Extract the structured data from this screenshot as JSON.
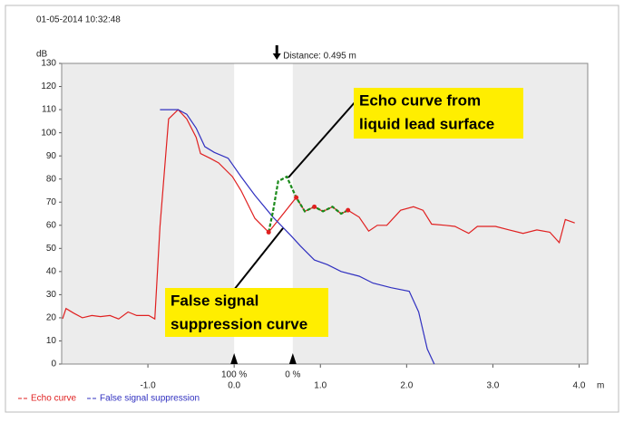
{
  "chart_data": {
    "type": "line",
    "timestamp": "01-05-2014 10:32:48",
    "y_label": "dB",
    "x_unit": "m",
    "xlim": [
      -2,
      4.1
    ],
    "ylim": [
      0,
      130
    ],
    "yticks": [
      0,
      10,
      20,
      30,
      40,
      50,
      60,
      70,
      80,
      90,
      100,
      110,
      120,
      130
    ],
    "xticks": [
      {
        "value": -1,
        "label": "-1.0"
      },
      {
        "value": 0,
        "label": "0.0"
      },
      {
        "value": 1,
        "label": "1.0"
      },
      {
        "value": 2,
        "label": "2.0"
      },
      {
        "value": 3,
        "label": "3.0"
      },
      {
        "value": 4,
        "label": "4.0"
      }
    ],
    "window": {
      "start": 0,
      "end": 0.68,
      "start_label": "100 %",
      "end_label": "0 %"
    },
    "distance": {
      "value": 0.495,
      "label": "Distance: 0.495 m"
    },
    "series": [
      {
        "name": "Echo curve",
        "color": "#e02020",
        "x": [
          -1.99,
          -1.95,
          -1.86,
          -1.76,
          -1.65,
          -1.55,
          -1.44,
          -1.34,
          -1.23,
          -1.13,
          -0.99,
          -0.92,
          -0.86,
          -0.76,
          -0.65,
          -0.55,
          -0.44,
          -0.39,
          -0.28,
          -0.18,
          -0.02,
          0.08,
          0.24,
          0.4,
          0.72,
          0.82,
          0.93,
          1.03,
          1.14,
          1.24,
          1.32,
          1.45,
          1.56,
          1.66,
          1.77,
          1.93,
          2.08,
          2.19,
          2.29,
          2.45,
          2.56,
          2.72,
          2.82,
          3.03,
          3.19,
          3.35,
          3.51,
          3.66,
          3.77,
          3.84,
          3.95
        ],
        "values": [
          19.6,
          24,
          22,
          20,
          21,
          20.5,
          21,
          19.5,
          22.5,
          21,
          21,
          19.5,
          59.5,
          106,
          110,
          106,
          98,
          91,
          89,
          87,
          81,
          75,
          63,
          57,
          72,
          66,
          68,
          66,
          68,
          65,
          66.5,
          63.5,
          57.5,
          60,
          60,
          66.5,
          68,
          66.5,
          60.5,
          60,
          59.5,
          56.5,
          59.5,
          59.5,
          58,
          56.5,
          58,
          57,
          52.5,
          62.5,
          61
        ]
      },
      {
        "name": "False signal suppression",
        "color": "#3030c0",
        "x": [
          -0.86,
          -0.65,
          -0.55,
          -0.44,
          -0.34,
          -0.23,
          -0.07,
          0.08,
          0.24,
          0.45,
          0.66,
          0.77,
          0.93,
          1.08,
          1.24,
          1.45,
          1.61,
          1.82,
          2.03,
          2.14,
          2.24,
          2.32
        ],
        "values": [
          110,
          110,
          108,
          102,
          94,
          91.5,
          89,
          81,
          73,
          63.5,
          55.5,
          51,
          45,
          43,
          40,
          38,
          35,
          33,
          31.5,
          22.5,
          6.5,
          0
        ]
      }
    ],
    "echo_highlight": {
      "color": "#1a8a1a",
      "x": [
        0.4,
        0.45,
        0.51,
        0.61,
        0.72,
        0.82,
        0.93,
        1.03,
        1.14,
        1.24,
        1.32
      ],
      "values": [
        57,
        66,
        79,
        81,
        72,
        66,
        68,
        66,
        68,
        65,
        66.5
      ]
    },
    "annotations": [
      {
        "lines": [
          "Echo curve from",
          "liquid lead surface"
        ]
      },
      {
        "lines": [
          "False signal",
          "suppression curve"
        ]
      }
    ]
  }
}
